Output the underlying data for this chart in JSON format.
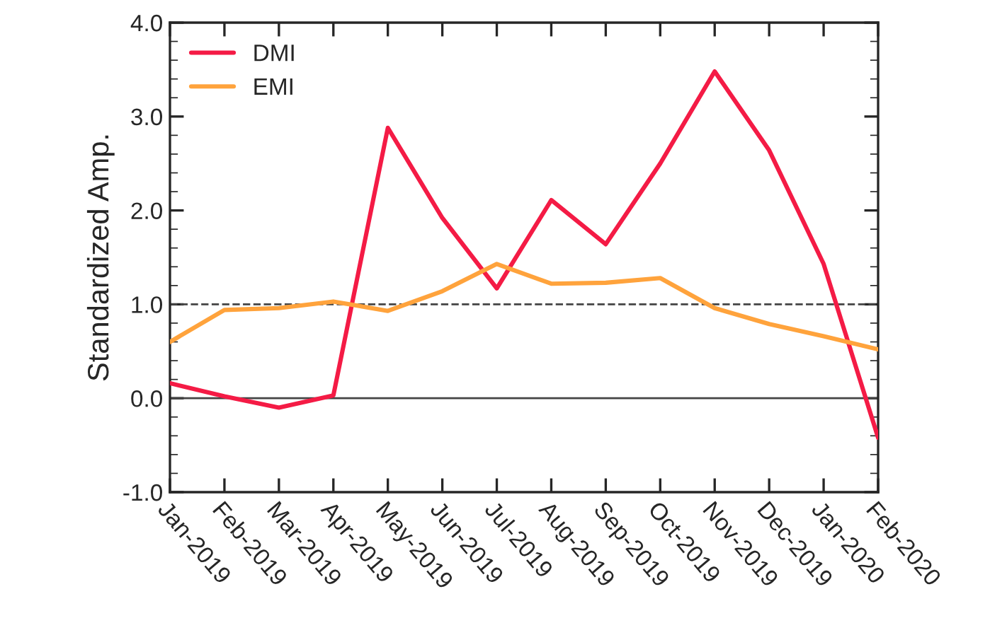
{
  "chart_data": {
    "type": "line",
    "ylabel": "Standardized Amp.",
    "categories": [
      "Jan-2019",
      "Feb-2019",
      "Mar-2019",
      "Apr-2019",
      "May-2019",
      "Jun-2019",
      "Jul-2019",
      "Aug-2019",
      "Sep-2019",
      "Oct-2019",
      "Nov-2019",
      "Dec-2019",
      "Jan-2020",
      "Feb-2020"
    ],
    "series": [
      {
        "name": "DMI",
        "color": "#f41b45",
        "values": [
          0.16,
          0.02,
          -0.1,
          0.03,
          2.88,
          1.92,
          1.17,
          2.11,
          1.64,
          2.5,
          3.48,
          2.64,
          1.43,
          -0.42
        ]
      },
      {
        "name": "EMI",
        "color": "#ffa33c",
        "values": [
          0.6,
          0.94,
          0.96,
          1.03,
          0.93,
          1.14,
          1.43,
          1.22,
          1.23,
          1.28,
          0.96,
          0.79,
          0.66,
          0.52
        ]
      }
    ],
    "ylim": [
      -1,
      4
    ],
    "yticks": [
      {
        "value": -1,
        "label": "-1.0"
      },
      {
        "value": 0,
        "label": "0.0"
      },
      {
        "value": 1,
        "label": "1.0"
      },
      {
        "value": 2,
        "label": "2.0"
      },
      {
        "value": 3,
        "label": "3.0"
      },
      {
        "value": 4,
        "label": "4.0"
      }
    ],
    "ref_lines": [
      {
        "axis": "y",
        "value": 1,
        "color": "#444444",
        "line_style": "dashed"
      },
      {
        "axis": "y",
        "value": 0,
        "color": "#444444",
        "line_style": "solid"
      }
    ],
    "grid": false,
    "legend": "top left",
    "line_style": "solid",
    "marker": "none"
  }
}
